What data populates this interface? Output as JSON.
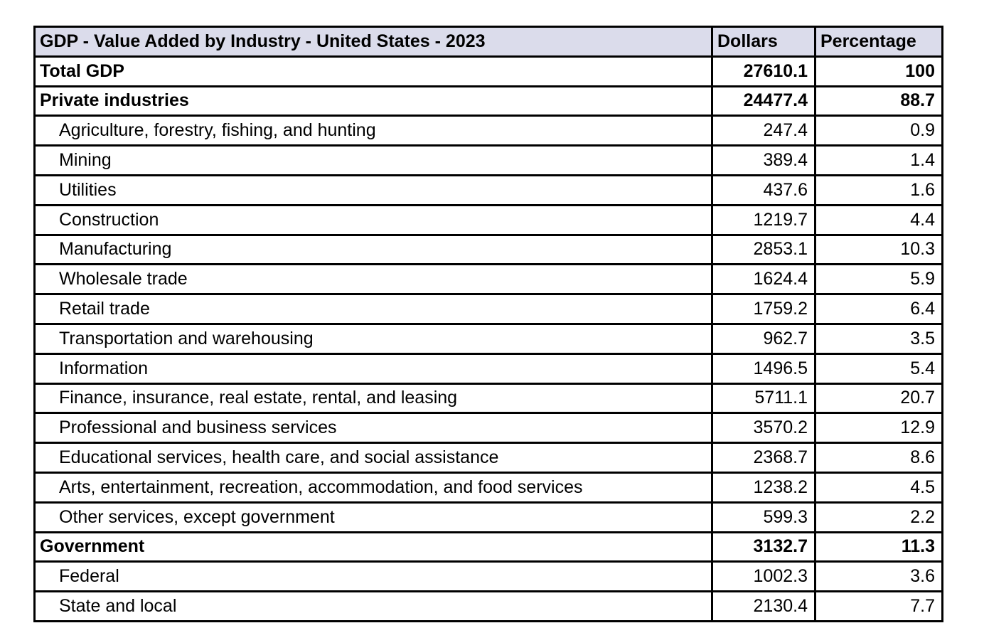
{
  "chart_data": {
    "type": "table",
    "title": "GDP - Value Added by Industry - United States - 2023",
    "columns": [
      "GDP - Value Added by Industry - United States - 2023",
      "Dollars",
      "Percentage"
    ],
    "rows": [
      {
        "label": "Total GDP",
        "dollars": 27610.1,
        "percentage": 100,
        "emphasis": "bold",
        "indent": false
      },
      {
        "label": "Private industries",
        "dollars": 24477.4,
        "percentage": 88.7,
        "emphasis": "bold",
        "indent": false
      },
      {
        "label": "Agriculture, forestry, fishing, and hunting",
        "dollars": 247.4,
        "percentage": 0.9,
        "emphasis": "normal",
        "indent": true
      },
      {
        "label": "Mining",
        "dollars": 389.4,
        "percentage": 1.4,
        "emphasis": "normal",
        "indent": true
      },
      {
        "label": "Utilities",
        "dollars": 437.6,
        "percentage": 1.6,
        "emphasis": "normal",
        "indent": true
      },
      {
        "label": "Construction",
        "dollars": 1219.7,
        "percentage": 4.4,
        "emphasis": "normal",
        "indent": true
      },
      {
        "label": "Manufacturing",
        "dollars": 2853.1,
        "percentage": 10.3,
        "emphasis": "normal",
        "indent": true
      },
      {
        "label": "Wholesale trade",
        "dollars": 1624.4,
        "percentage": 5.9,
        "emphasis": "normal",
        "indent": true
      },
      {
        "label": "Retail trade",
        "dollars": 1759.2,
        "percentage": 6.4,
        "emphasis": "normal",
        "indent": true
      },
      {
        "label": "Transportation and warehousing",
        "dollars": 962.7,
        "percentage": 3.5,
        "emphasis": "normal",
        "indent": true
      },
      {
        "label": "Information",
        "dollars": 1496.5,
        "percentage": 5.4,
        "emphasis": "normal",
        "indent": true
      },
      {
        "label": "Finance, insurance, real estate, rental, and leasing",
        "dollars": 5711.1,
        "percentage": 20.7,
        "emphasis": "normal",
        "indent": true
      },
      {
        "label": "Professional and business services",
        "dollars": 3570.2,
        "percentage": 12.9,
        "emphasis": "normal",
        "indent": true
      },
      {
        "label": "Educational services, health care, and social assistance",
        "dollars": 2368.7,
        "percentage": 8.6,
        "emphasis": "normal",
        "indent": true
      },
      {
        "label": "Arts, entertainment, recreation, accommodation, and food services",
        "dollars": 1238.2,
        "percentage": 4.5,
        "emphasis": "normal",
        "indent": true
      },
      {
        "label": "Other services, except government",
        "dollars": 599.3,
        "percentage": 2.2,
        "emphasis": "normal",
        "indent": true
      },
      {
        "label": "Government",
        "dollars": 3132.7,
        "percentage": 11.3,
        "emphasis": "bold",
        "indent": false
      },
      {
        "label": "Federal",
        "dollars": 1002.3,
        "percentage": 3.6,
        "emphasis": "normal",
        "indent": true
      },
      {
        "label": "State and local",
        "dollars": 2130.4,
        "percentage": 7.7,
        "emphasis": "normal",
        "indent": true
      }
    ],
    "layout": {
      "grid": true,
      "header_background": "#dbdceb",
      "border_color": "#000000",
      "row_background": "#ffffff"
    }
  }
}
